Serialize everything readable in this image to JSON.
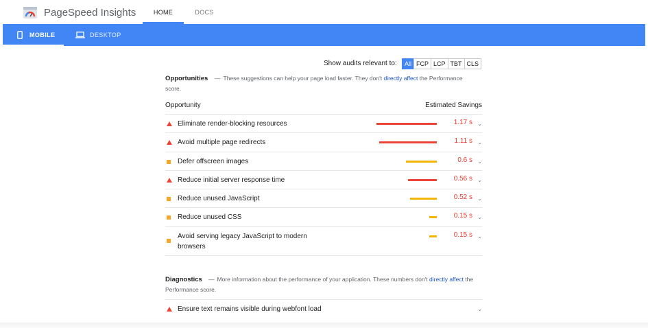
{
  "header": {
    "brand": "PageSpeed Insights",
    "nav": [
      {
        "label": "HOME",
        "active": true
      },
      {
        "label": "DOCS",
        "active": false
      }
    ],
    "accent": "#4285f4"
  },
  "device_tabs": [
    {
      "label": "MOBILE",
      "icon": "phone-icon",
      "active": true
    },
    {
      "label": "DESKTOP",
      "icon": "laptop-icon",
      "active": false
    }
  ],
  "filter": {
    "label": "Show audits relevant to:",
    "chips": [
      "All",
      "FCP",
      "LCP",
      "TBT",
      "CLS"
    ],
    "selected": "All"
  },
  "opportunities": {
    "title": "Opportunities",
    "desc_before": "These suggestions can help your page load faster. They don't ",
    "desc_link": "directly affect",
    "desc_after": " the Performance score.",
    "col_left": "Opportunity",
    "col_right": "Estimated Savings",
    "items": [
      {
        "title": "Eliminate render-blocking resources",
        "savings": "1.17 s",
        "severity": "fail",
        "icon": "warning-triangle-icon",
        "bar_fraction": 1.0
      },
      {
        "title": "Avoid multiple page redirects",
        "savings": "1.11 s",
        "severity": "fail",
        "icon": "warning-triangle-icon",
        "bar_fraction": 0.95
      },
      {
        "title": "Defer offscreen images",
        "savings": "0.6 s",
        "severity": "average",
        "icon": "average-square-icon",
        "bar_fraction": 0.51
      },
      {
        "title": "Reduce initial server response time",
        "savings": "0.56 s",
        "severity": "fail",
        "icon": "warning-triangle-icon",
        "bar_fraction": 0.48
      },
      {
        "title": "Reduce unused JavaScript",
        "savings": "0.52 s",
        "severity": "average",
        "icon": "average-square-icon",
        "bar_fraction": 0.44
      },
      {
        "title": "Reduce unused CSS",
        "savings": "0.15 s",
        "severity": "average",
        "icon": "average-square-icon",
        "bar_fraction": 0.13
      },
      {
        "title": "Avoid serving legacy JavaScript to modern browsers",
        "savings": "0.15 s",
        "severity": "average",
        "icon": "average-square-icon",
        "bar_fraction": 0.13
      }
    ]
  },
  "diagnostics": {
    "title": "Diagnostics",
    "desc_before": "More information about the performance of your application. These numbers don't ",
    "desc_link": "directly affect",
    "desc_after": " the Performance score.",
    "items": [
      {
        "title": "Ensure text remains visible during webfont load",
        "severity": "fail",
        "icon": "warning-triangle-icon"
      }
    ]
  },
  "colors": {
    "fail": "#eb4335",
    "average": "#f4b400",
    "link": "#1a53c8"
  }
}
